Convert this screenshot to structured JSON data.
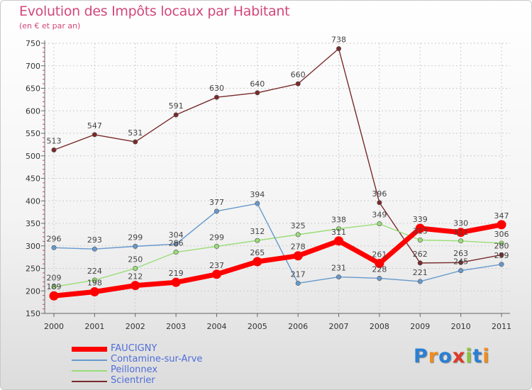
{
  "chart_data": {
    "type": "line",
    "title": "Evolution des Impôts locaux par Habitant",
    "subtitle": "(en € et par an)",
    "xlabel": "",
    "ylabel": "",
    "ylim": [
      150,
      750
    ],
    "yticks": [
      150,
      200,
      250,
      300,
      350,
      400,
      450,
      500,
      550,
      600,
      650,
      700,
      750
    ],
    "categories": [
      "2000",
      "2001",
      "2002",
      "2003",
      "2004",
      "2005",
      "2006",
      "2007",
      "2008",
      "2009",
      "2010",
      "2011"
    ],
    "series": [
      {
        "name": "FAUCIGNY",
        "color": "#ff0000",
        "values": [
          189,
          198,
          212,
          219,
          237,
          265,
          278,
          311,
          261,
          339,
          330,
          347
        ]
      },
      {
        "name": "Contamine-sur-Arve",
        "color": "#6699cc",
        "values": [
          296,
          293,
          299,
          304,
          377,
          394,
          217,
          231,
          228,
          221,
          245,
          259
        ]
      },
      {
        "name": "Peillonnex",
        "color": "#99dd77",
        "values": [
          209,
          224,
          250,
          286,
          299,
          312,
          325,
          338,
          349,
          313,
          311,
          306
        ]
      },
      {
        "name": "Scientrier",
        "color": "#7a2a2a",
        "values": [
          513,
          547,
          531,
          591,
          630,
          640,
          660,
          738,
          396,
          262,
          263,
          280
        ]
      }
    ],
    "legend_position": "bottom-left"
  },
  "logo": {
    "text": "Proxiti",
    "colors": [
      "#2a7fd4",
      "#f08c1a",
      "#2a7fd4",
      "#e03a2a",
      "#8bc43f",
      "#2a7fd4",
      "#f08c1a"
    ]
  }
}
